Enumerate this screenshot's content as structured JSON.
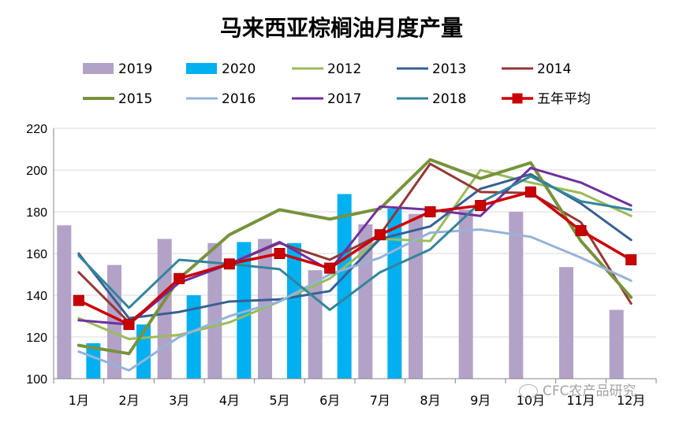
{
  "chart_data": {
    "type": "bar",
    "title": "马来西亚棕榈油月度产量",
    "categories": [
      "1月",
      "2月",
      "3月",
      "4月",
      "5月",
      "6月",
      "7月",
      "8月",
      "9月",
      "10月",
      "11月",
      "12月"
    ],
    "ylim": [
      100,
      220
    ],
    "yticks": [
      100,
      120,
      140,
      160,
      180,
      200,
      220
    ],
    "grid": true,
    "legend_position": "top",
    "bar_series": [
      {
        "name": "2019",
        "color": "#b3a2c7",
        "values": [
          173.5,
          154.5,
          167,
          165,
          167,
          152,
          174,
          179,
          181,
          180,
          153.5,
          133
        ]
      },
      {
        "name": "2020",
        "color": "#00b0f0",
        "values": [
          117,
          126,
          140,
          165.5,
          165,
          188.5,
          181.5,
          null,
          null,
          null,
          null,
          null
        ]
      }
    ],
    "line_series": [
      {
        "name": "2012",
        "color": "#9bbb59",
        "width": 3,
        "values": [
          129,
          119,
          121,
          127,
          137,
          148,
          167,
          166,
          200,
          194,
          189,
          178
        ]
      },
      {
        "name": "2013",
        "color": "#376092",
        "width": 3,
        "values": [
          160,
          129,
          132,
          137,
          138,
          142,
          167,
          173,
          191,
          198,
          184,
          166.5
        ]
      },
      {
        "name": "2014",
        "color": "#953735",
        "width": 3,
        "values": [
          151,
          127,
          146,
          155,
          165,
          157,
          169,
          203,
          189.5,
          189,
          175,
          136
        ]
      },
      {
        "name": "2015",
        "color": "#77933c",
        "width": 4,
        "values": [
          116,
          112,
          148,
          169,
          181,
          176.5,
          181.5,
          205,
          196,
          203.5,
          166,
          139
        ]
      },
      {
        "name": "2016",
        "color": "#95b3d7",
        "width": 3,
        "values": [
          113,
          104,
          120,
          130,
          137,
          150,
          158,
          170,
          171.5,
          168,
          158,
          147
        ]
      },
      {
        "name": "2017",
        "color": "#7030a0",
        "width": 3,
        "values": [
          128,
          126,
          146,
          155,
          165.5,
          152,
          182.5,
          181,
          178,
          201,
          194,
          183
        ]
      },
      {
        "name": "2018",
        "color": "#31859c",
        "width": 3,
        "values": [
          159,
          134,
          157,
          155,
          152.5,
          133,
          151,
          162,
          184.5,
          197,
          185,
          181
        ]
      }
    ],
    "avg_series": {
      "name": "五年平均",
      "color": "#cc0000",
      "width": 3.5,
      "values": [
        137.5,
        126,
        148,
        155,
        160,
        153,
        169,
        180,
        183,
        189.5,
        171,
        157
      ]
    }
  },
  "watermark": {
    "text": "CFC农产品研究",
    "icon": "wechat-icon"
  }
}
